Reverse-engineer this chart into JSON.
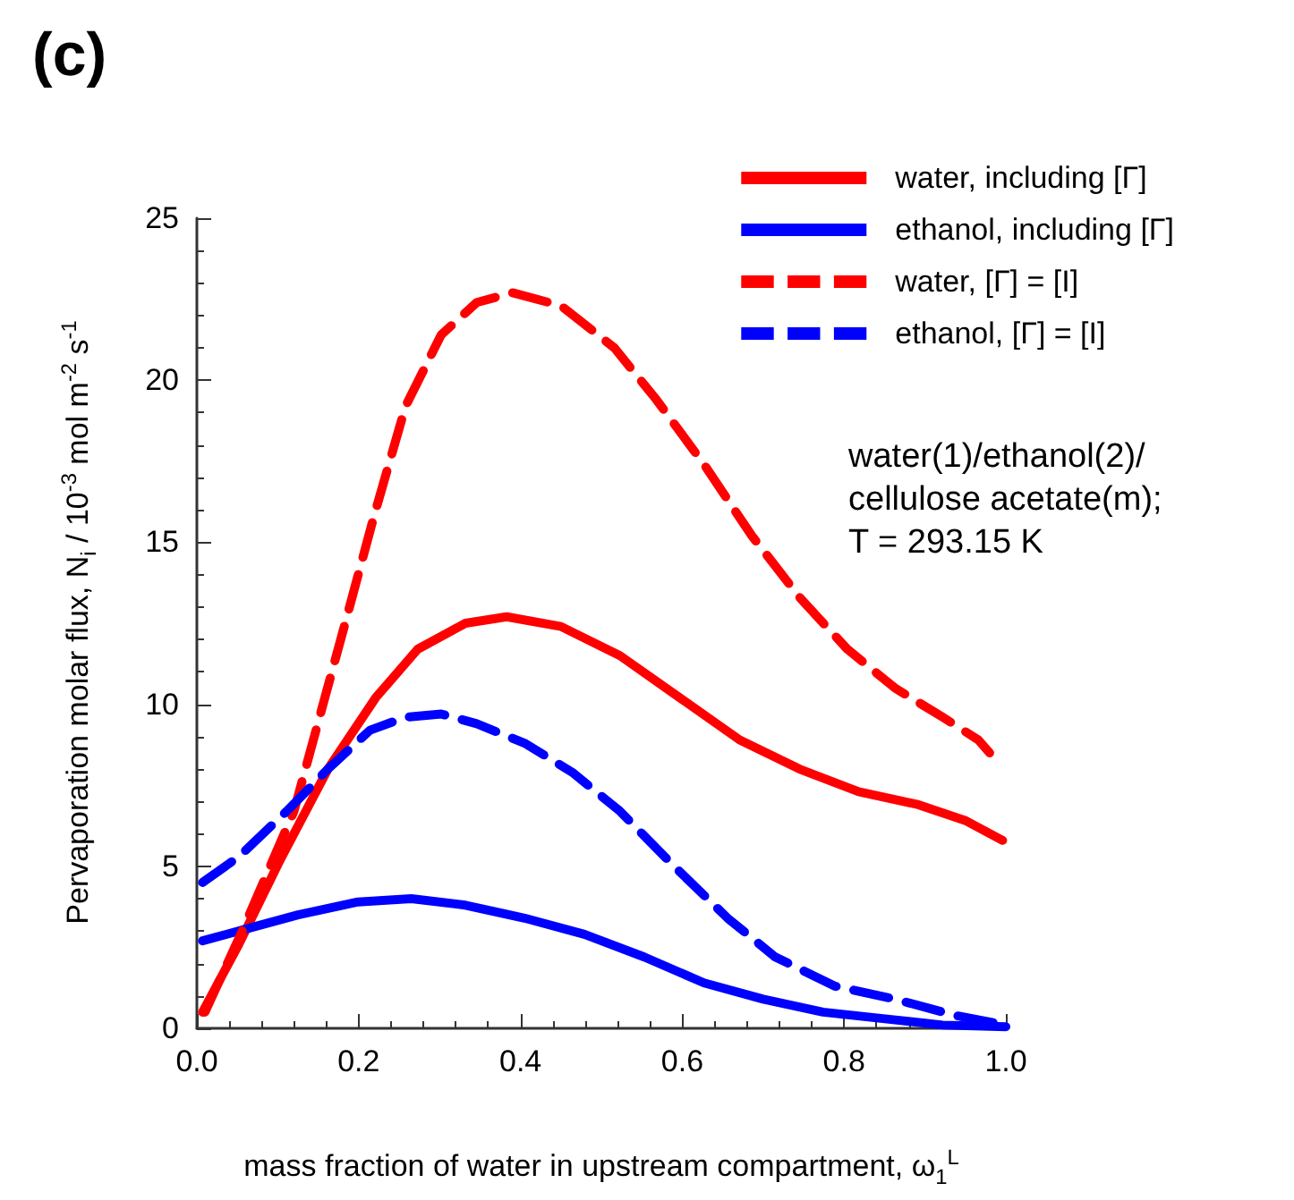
{
  "chart_data": {
    "type": "line",
    "title": "(c)",
    "xlabel": "mass fraction of water in upstream compartment, ω$_{1}$$^{L}$",
    "ylabel": "Pervaporation molar flux, N$_{i}$ / 10$^{-3}$ mol m$^{-2}$ s$^{-1}$",
    "annotations": [
      "water(1)/ethanol(2)/",
      "cellulose acetate(m);",
      "T = 293.15 K"
    ],
    "xlim": [
      0,
      1
    ],
    "xticks": [
      {
        "value": 0,
        "label": "0.0"
      },
      0.2,
      0.4,
      0.6,
      0.8,
      {
        "value": 1,
        "label": "1.0"
      }
    ],
    "ylim": [
      0,
      25
    ],
    "yticks": [
      0,
      5,
      10,
      15,
      20,
      25
    ],
    "grid": false,
    "legend": "top right",
    "marker": "none",
    "series": [
      {
        "name": "water, including [Γ]",
        "color": "#ff0000",
        "line_style": "solid",
        "x": [
          0.007,
          0.052,
          0.103,
          0.162,
          0.221,
          0.273,
          0.332,
          0.383,
          0.45,
          0.523,
          0.597,
          0.671,
          0.745,
          0.818,
          0.892,
          0.951,
          0.996
        ],
        "values": [
          0.5,
          2.6,
          5.2,
          8.0,
          10.2,
          11.7,
          12.5,
          12.7,
          12.4,
          11.5,
          10.2,
          8.9,
          8.0,
          7.3,
          6.9,
          6.4,
          5.8
        ]
      },
      {
        "name": "ethanol, including [Γ]",
        "color": "#0000ff",
        "line_style": "solid",
        "x": [
          0.007,
          0.066,
          0.125,
          0.199,
          0.265,
          0.332,
          0.405,
          0.479,
          0.553,
          0.627,
          0.7,
          0.774,
          0.848,
          0.922,
          1.0
        ],
        "values": [
          2.7,
          3.1,
          3.5,
          3.9,
          4.0,
          3.8,
          3.4,
          2.9,
          2.2,
          1.4,
          0.9,
          0.5,
          0.3,
          0.1,
          0.05
        ]
      },
      {
        "name": "water, [Γ] = [I]",
        "color": "#ff0000",
        "line_style": "dashed",
        "x": [
          0.01,
          0.056,
          0.12,
          0.18,
          0.22,
          0.258,
          0.302,
          0.346,
          0.39,
          0.45,
          0.516,
          0.568,
          0.627,
          0.686,
          0.745,
          0.804,
          0.863,
          0.922,
          0.966,
          0.98
        ],
        "values": [
          0.5,
          3.0,
          6.7,
          12.2,
          15.9,
          19.2,
          21.4,
          22.4,
          22.7,
          22.3,
          21.0,
          19.4,
          17.4,
          15.2,
          13.3,
          11.7,
          10.5,
          9.6,
          8.9,
          8.5
        ]
      },
      {
        "name": "ethanol, [Γ] = [I]",
        "color": "#0000ff",
        "line_style": "dashed",
        "x": [
          0.007,
          0.052,
          0.111,
          0.162,
          0.214,
          0.258,
          0.302,
          0.346,
          0.405,
          0.464,
          0.523,
          0.59,
          0.656,
          0.715,
          0.789,
          0.863,
          0.937,
          1.0
        ],
        "values": [
          4.5,
          5.3,
          6.7,
          8.0,
          9.2,
          9.6,
          9.7,
          9.4,
          8.8,
          7.9,
          6.7,
          5.0,
          3.4,
          2.2,
          1.3,
          0.9,
          0.4,
          0.1
        ]
      }
    ]
  }
}
